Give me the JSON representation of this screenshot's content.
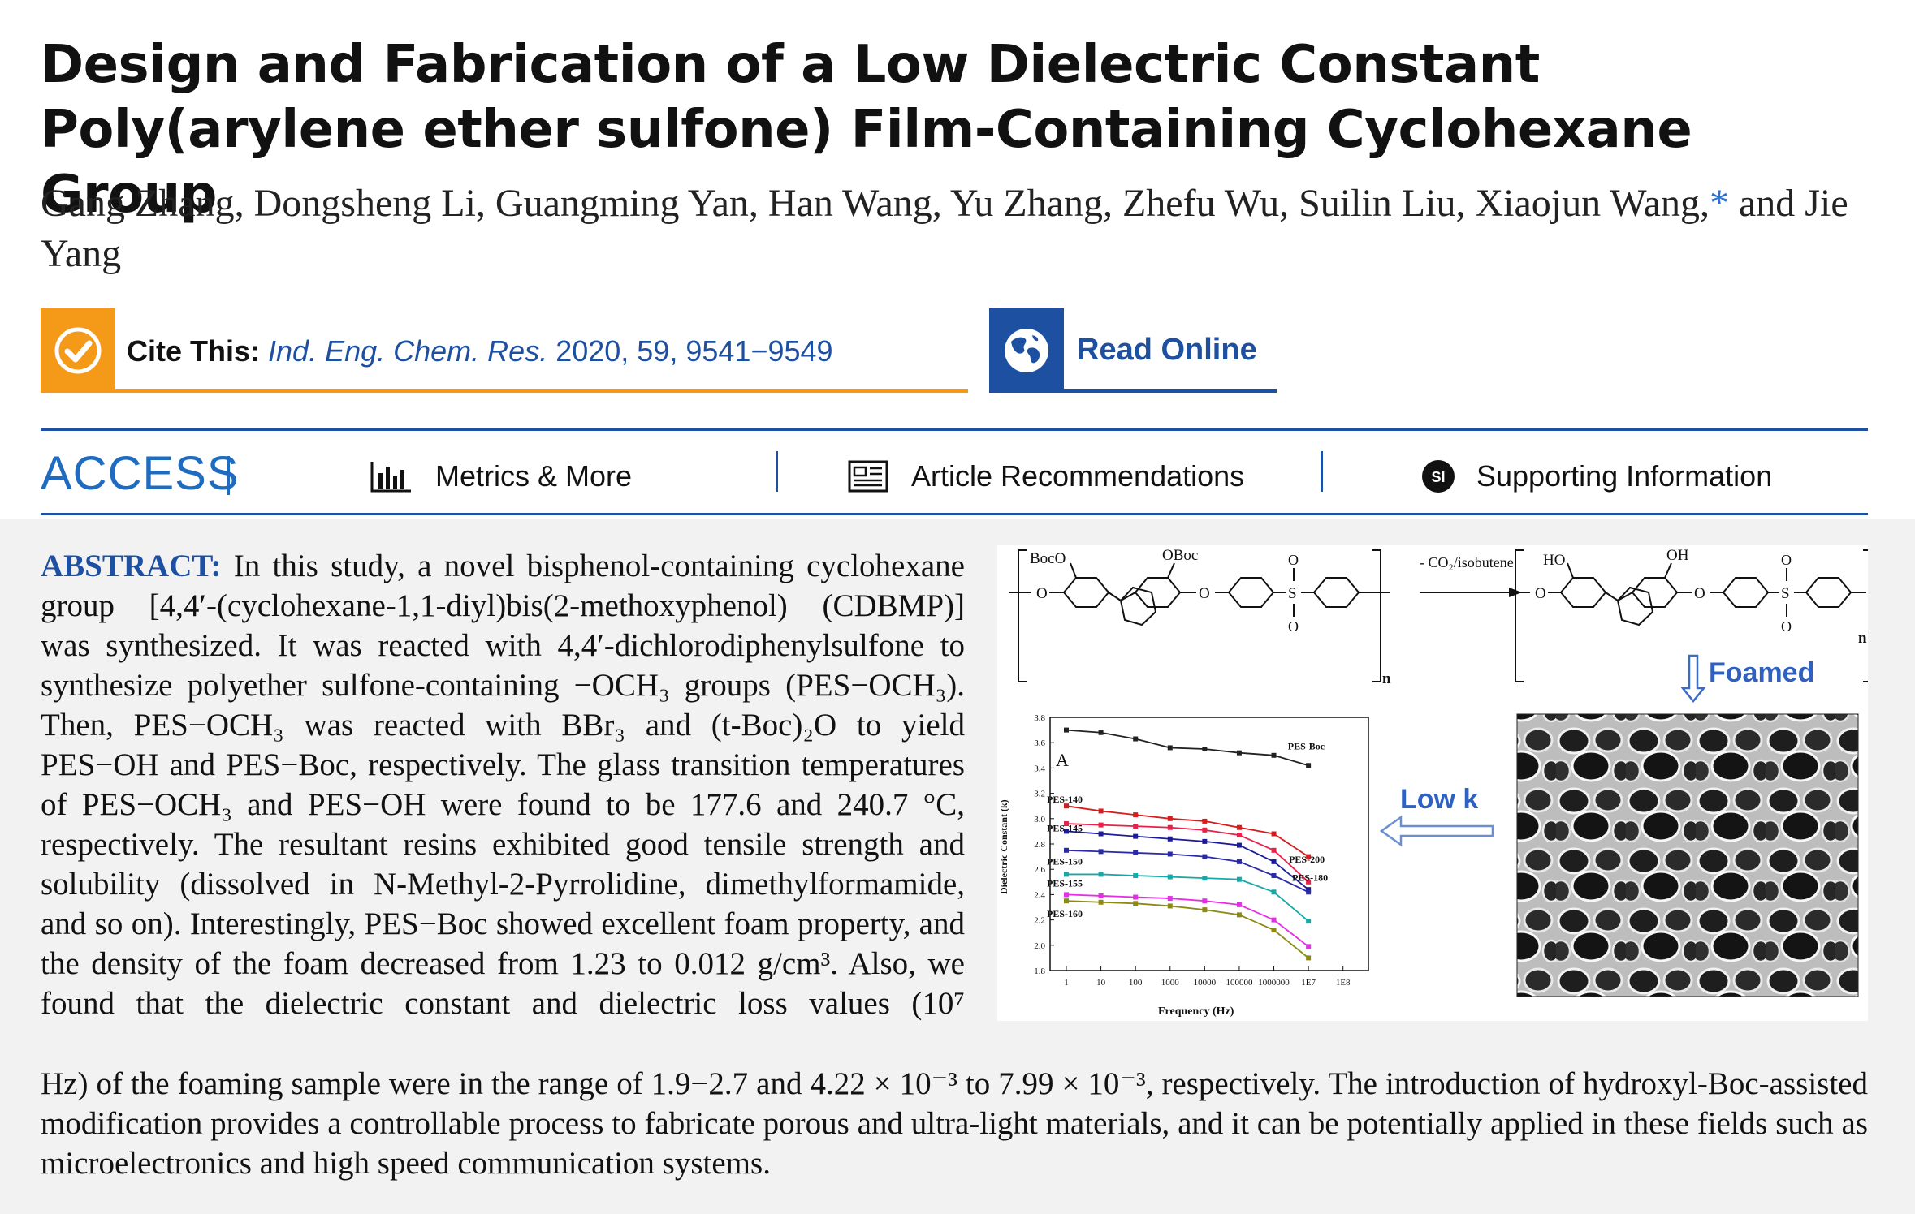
{
  "title": "Design and Fabrication of a Low Dielectric Constant Poly(arylene ether sulfone) Film-Containing Cyclohexane Group",
  "authors": {
    "text": "Gang Zhang, Dongsheng Li, Guangming Yan, Han Wang, Yu Zhang, Zhefu Wu, Suilin Liu, Xiaojun Wang,",
    "star": "*",
    "tail": " and Jie Yang"
  },
  "cite": {
    "label": "Cite This:",
    "journal": "Ind. Eng. Chem. Res.",
    "rest": " 2020, 59, 9541−9549",
    "icon": "checkmark-icon",
    "color": "#f49a18"
  },
  "read_online": {
    "label": "Read Online",
    "icon": "globe-icon",
    "color": "#1e50a2"
  },
  "access": {
    "label": "ACCESS"
  },
  "nav": {
    "metrics": "Metrics & More",
    "recommendations": "Article Recommendations",
    "supporting": "Supporting Information",
    "si_badge": "SI"
  },
  "abstract": {
    "label": "ABSTRACT:",
    "top": " In this study, a novel bisphenol-containing cyclohexane group [4,4′-(cyclohexane-1,1-diyl)bis(2-methoxyphenol) (CDBMP)] was synthesized. It was reacted with 4,4′-dichlorodiphenylsulfone to synthesize polyether sulfone-containing −OCH₃ groups (PES−OCH₃). Then, PES−OCH₃ was reacted with BBr₃ and (t-Boc)₂O to yield PES−OH and PES−Boc, respectively. The glass transition temperatures of PES−OCH₃ and PES−OH were found to be 177.6 and 240.7 °C, respectively. The resultant resins exhibited good tensile strength and solubility (dissolved in N-Methyl-2-Pyrrolidine, dimethylformamide, and so on). Interestingly, PES−Boc showed excellent foam property, and the density of the foam decreased from 1.23 to 0.012 g/cm³. Also, we found that the dielectric constant and dielectric loss values (10⁷",
    "bottom": "Hz) of the foaming sample were in the range of 1.9−2.7 and 4.22 × 10⁻³ to 7.99 × 10⁻³, respectively. The introduction of hydroxyl-Boc-assisted modification provides a controllable process to fabricate porous and ultra-light materials, and it can be potentially applied in these fields such as microelectronics and high speed communication systems."
  },
  "toc": {
    "left_sub1": "BocO",
    "left_sub2": "OBoc",
    "right_sub1": "HO",
    "right_sub2": "OH",
    "n": "n",
    "arrow_label": "- CO₂/isobutene",
    "foamed": "Foamed",
    "low_k": "Low k"
  },
  "chart_data": {
    "type": "line",
    "panel_label": "A",
    "xlabel": "Frequency (Hz)",
    "ylabel": "Dielectric Constant (k)",
    "x_scale": "log",
    "x_ticks": [
      "1",
      "10",
      "100",
      "1000",
      "10000",
      "100000",
      "1000000",
      "1E7",
      "1E8"
    ],
    "y_ticks": [
      "1.8",
      "2.0",
      "2.2",
      "2.4",
      "2.6",
      "2.8",
      "3.0",
      "3.2",
      "3.4",
      "3.6",
      "3.8"
    ],
    "ylim": [
      1.8,
      3.8
    ],
    "x": [
      1,
      10,
      100,
      1000,
      10000,
      100000,
      1000000,
      10000000
    ],
    "series": [
      {
        "name": "PES-Boc",
        "color": "#222222",
        "values": [
          3.7,
          3.68,
          3.63,
          3.56,
          3.55,
          3.52,
          3.5,
          3.42
        ]
      },
      {
        "name": "PES-140",
        "color": "#d61c1c",
        "values": [
          3.1,
          3.06,
          3.03,
          3.0,
          2.98,
          2.93,
          2.88,
          2.7
        ]
      },
      {
        "name": "PES-200",
        "color": "#e8204a",
        "values": [
          2.96,
          2.95,
          2.94,
          2.93,
          2.91,
          2.87,
          2.75,
          2.5
        ]
      },
      {
        "name": "PES-145",
        "color": "#1a1a9a",
        "values": [
          2.9,
          2.88,
          2.86,
          2.84,
          2.82,
          2.79,
          2.66,
          2.44
        ]
      },
      {
        "name": "PES-180",
        "color": "#2a2aa8",
        "values": [
          2.75,
          2.74,
          2.73,
          2.72,
          2.7,
          2.66,
          2.55,
          2.42
        ]
      },
      {
        "name": "PES-150",
        "color": "#17a8a8",
        "values": [
          2.56,
          2.56,
          2.55,
          2.54,
          2.53,
          2.52,
          2.42,
          2.19
        ]
      },
      {
        "name": "PES-155",
        "color": "#e42fe4",
        "values": [
          2.4,
          2.39,
          2.38,
          2.37,
          2.35,
          2.32,
          2.2,
          1.99
        ]
      },
      {
        "name": "PES-160",
        "color": "#8a8a14",
        "values": [
          2.35,
          2.34,
          2.33,
          2.31,
          2.28,
          2.24,
          2.12,
          1.9
        ]
      }
    ]
  }
}
